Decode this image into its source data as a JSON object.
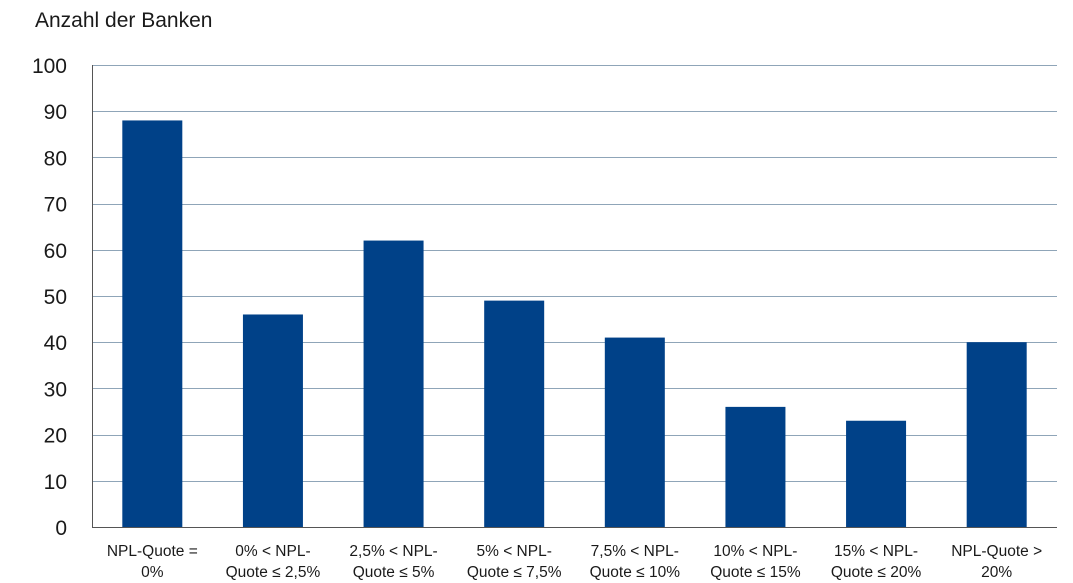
{
  "chart_data": {
    "type": "bar",
    "title": "",
    "ylabel": "Anzahl der Banken",
    "xlabel": "",
    "ylim": [
      0,
      100
    ],
    "yticks": [
      0,
      10,
      20,
      30,
      40,
      50,
      60,
      70,
      80,
      90,
      100
    ],
    "grid": "horizontal",
    "bar_color": "#004188",
    "grid_color": "#8fa5b8",
    "axis_color": "#555555",
    "categories": [
      [
        "NPL-Quote =",
        "0%"
      ],
      [
        "0% < NPL-",
        "Quote ≤ 2,5%"
      ],
      [
        "2,5% < NPL-",
        "Quote ≤ 5%"
      ],
      [
        "5% < NPL-",
        "Quote ≤ 7,5%"
      ],
      [
        "7,5% < NPL-",
        "Quote ≤ 10%"
      ],
      [
        "10% < NPL-",
        "Quote ≤ 15%"
      ],
      [
        "15% < NPL-",
        "Quote ≤ 20%"
      ],
      [
        "NPL-Quote >",
        "20%"
      ]
    ],
    "values": [
      88,
      46,
      62,
      49,
      41,
      26,
      23,
      40
    ]
  }
}
